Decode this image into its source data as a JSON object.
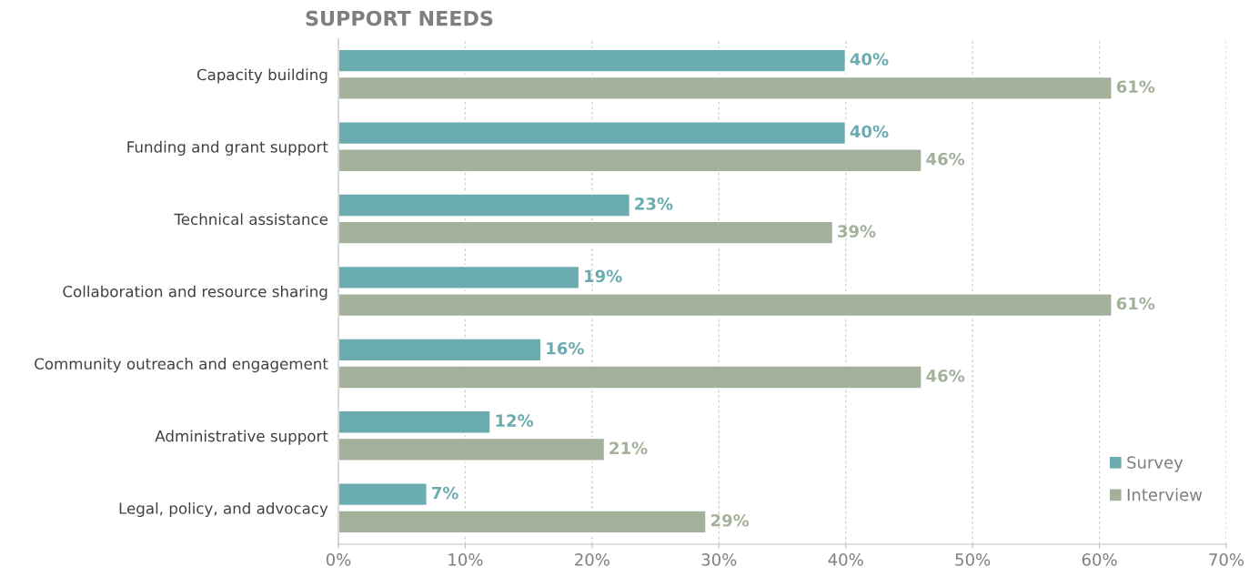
{
  "chart_data": {
    "type": "bar",
    "orientation": "horizontal",
    "title": "SUPPORT NEEDS",
    "categories": [
      "Capacity building",
      "Funding and grant support",
      "Technical assistance",
      "Collaboration and resource sharing",
      "Community outreach and engagement",
      "Administrative support",
      "Legal, policy, and advocacy"
    ],
    "series": [
      {
        "name": "Survey",
        "color": "#6aacb0",
        "values": [
          40,
          40,
          23,
          19,
          16,
          12,
          7
        ],
        "value_labels": [
          "40%",
          "40%",
          "23%",
          "19%",
          "16%",
          "12%",
          "7%"
        ]
      },
      {
        "name": "Interview",
        "color": "#a3b09a",
        "values": [
          61,
          46,
          39,
          61,
          46,
          21,
          29
        ],
        "value_labels": [
          "61%",
          "46%",
          "39%",
          "61%",
          "46%",
          "21%",
          "29%"
        ]
      }
    ],
    "xlim": [
      0,
      70
    ],
    "xticks": [
      {
        "value": 0,
        "label": "0%"
      },
      {
        "value": 10,
        "label": "10%"
      },
      {
        "value": 20,
        "label": "20%"
      },
      {
        "value": 30,
        "label": "30%"
      },
      {
        "value": 40,
        "label": "40%"
      },
      {
        "value": 50,
        "label": "50%"
      },
      {
        "value": 60,
        "label": "60%"
      },
      {
        "value": 70,
        "label": "70%"
      }
    ],
    "grid": "x",
    "legend": "bottom right"
  }
}
